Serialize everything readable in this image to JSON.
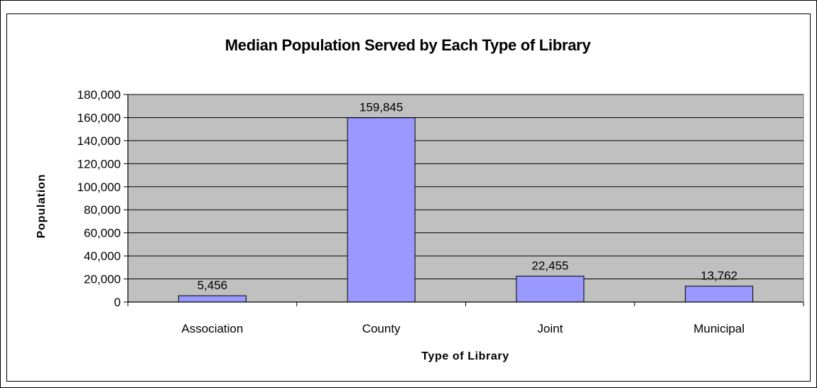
{
  "chart_data": {
    "type": "bar",
    "title": "Median Population Served by Each Type of Library",
    "xlabel": "Type of Library",
    "ylabel": "Population",
    "categories": [
      "Association",
      "County",
      "Joint",
      "Municipal"
    ],
    "values": [
      5456,
      159845,
      22455,
      13762
    ],
    "data_labels": [
      "5,456",
      "159,845",
      "22,455",
      "13,762"
    ],
    "ylim": [
      0,
      180000
    ],
    "ytick_step": 20000,
    "ytick_labels": [
      "0",
      "20,000",
      "40,000",
      "60,000",
      "80,000",
      "100,000",
      "120,000",
      "140,000",
      "160,000",
      "180,000"
    ],
    "grid": true,
    "legend": "none",
    "colors": {
      "bar_fill": "#9999ff",
      "plot_background": "#c0c0c0",
      "gridline": "#000000"
    }
  }
}
